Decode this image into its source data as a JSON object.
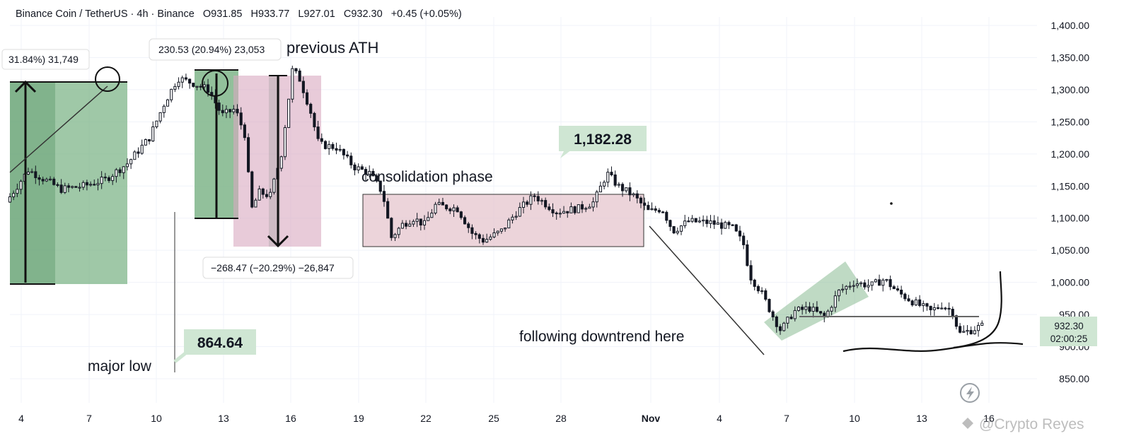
{
  "header": {
    "symbol": "Binance Coin / TetherUS · 4h · Binance",
    "open": "O931.85",
    "high": "H933.77",
    "low": "L927.01",
    "close": "C932.30",
    "change": "+0.45 (+0.05%)"
  },
  "price_tag": {
    "price": "932.30",
    "countdown": "02:00:25"
  },
  "watermark": "@Crypto Reyes",
  "annotations": {
    "previous_ath": "previous ATH",
    "consolidation": "consolidation phase",
    "downtrend": "following downtrend here",
    "major_low": "major low",
    "high_label": "1,182.28",
    "low_label": "864.64",
    "measure_left": "31.84%) 31,749",
    "measure_up": "230.53 (20.94%) 23,053",
    "measure_down": "−268.47 (−20.29%) −26,847"
  },
  "colors": {
    "up": "#26a69a",
    "down": "#131722",
    "green_box": "#7fb589",
    "pink_box": "#d9a9bf",
    "label_green": "#cfe6d3",
    "price_tag": "#cfe6d3"
  },
  "chart_data": {
    "type": "candlestick",
    "interval": "4h",
    "ylim": [
      830,
      1420
    ],
    "y_ticks": [
      850,
      900,
      950,
      1000,
      1050,
      1100,
      1150,
      1200,
      1250,
      1300,
      1350,
      1400
    ],
    "y_tick_labels": [
      "850.00",
      "900.00",
      "950.00",
      "1,000.00",
      "1,050.00",
      "1,100.00",
      "1,150.00",
      "1,200.00",
      "1,250.00",
      "1,300.00",
      "1,350.00",
      "1,400.00"
    ],
    "x_labels": [
      "4",
      "7",
      "10",
      "13",
      "16",
      "19",
      "22",
      "25",
      "28",
      "Nov",
      "4",
      "7",
      "10",
      "13",
      "16"
    ],
    "price_path": [
      {
        "x": 0,
        "y": 1125
      },
      {
        "x": 1,
        "y": 1175
      },
      {
        "x": 2,
        "y": 1155
      },
      {
        "x": 2.5,
        "y": 1145
      },
      {
        "x": 3.5,
        "y": 1150
      },
      {
        "x": 4.5,
        "y": 1160
      },
      {
        "x": 5.5,
        "y": 1185
      },
      {
        "x": 6.5,
        "y": 1225
      },
      {
        "x": 7.2,
        "y": 1280
      },
      {
        "x": 7.8,
        "y": 1318
      },
      {
        "x": 8.5,
        "y": 1310
      },
      {
        "x": 9.2,
        "y": 1300
      },
      {
        "x": 9.8,
        "y": 1260
      },
      {
        "x": 10.4,
        "y": 1270
      },
      {
        "x": 10.9,
        "y": 1225
      },
      {
        "x": 11.1,
        "y": 1110
      },
      {
        "x": 11.5,
        "y": 1140
      },
      {
        "x": 12,
        "y": 1135
      },
      {
        "x": 12.5,
        "y": 1200
      },
      {
        "x": 13,
        "y": 1330
      },
      {
        "x": 13.3,
        "y": 1320
      },
      {
        "x": 13.8,
        "y": 1270
      },
      {
        "x": 14.2,
        "y": 1215
      },
      {
        "x": 15,
        "y": 1210
      },
      {
        "x": 15.8,
        "y": 1180
      },
      {
        "x": 16.5,
        "y": 1170
      },
      {
        "x": 17.1,
        "y": 1140
      },
      {
        "x": 17.5,
        "y": 1070
      },
      {
        "x": 18,
        "y": 1090
      },
      {
        "x": 18.5,
        "y": 1100
      },
      {
        "x": 19,
        "y": 1090
      },
      {
        "x": 19.5,
        "y": 1120
      },
      {
        "x": 20.5,
        "y": 1115
      },
      {
        "x": 21.2,
        "y": 1075
      },
      {
        "x": 21.7,
        "y": 1065
      },
      {
        "x": 22.5,
        "y": 1080
      },
      {
        "x": 23.2,
        "y": 1110
      },
      {
        "x": 24,
        "y": 1135
      },
      {
        "x": 25,
        "y": 1110
      },
      {
        "x": 26,
        "y": 1115
      },
      {
        "x": 26.7,
        "y": 1125
      },
      {
        "x": 27.3,
        "y": 1170
      },
      {
        "x": 27.8,
        "y": 1150
      },
      {
        "x": 28.5,
        "y": 1135
      },
      {
        "x": 29.2,
        "y": 1110
      },
      {
        "x": 29.8,
        "y": 1115
      },
      {
        "x": 30.3,
        "y": 1080
      },
      {
        "x": 31,
        "y": 1095
      },
      {
        "x": 32,
        "y": 1093
      },
      {
        "x": 33,
        "y": 1085
      },
      {
        "x": 33.5,
        "y": 1060
      },
      {
        "x": 33.8,
        "y": 1010
      },
      {
        "x": 34.3,
        "y": 985
      },
      {
        "x": 34.8,
        "y": 950
      },
      {
        "x": 35.2,
        "y": 925
      },
      {
        "x": 35.8,
        "y": 955
      },
      {
        "x": 36.5,
        "y": 960
      },
      {
        "x": 37.2,
        "y": 945
      },
      {
        "x": 37.8,
        "y": 985
      },
      {
        "x": 38.5,
        "y": 1000
      },
      {
        "x": 39.3,
        "y": 995
      },
      {
        "x": 39.9,
        "y": 1005
      },
      {
        "x": 40.5,
        "y": 985
      },
      {
        "x": 41.2,
        "y": 970
      },
      {
        "x": 42,
        "y": 955
      },
      {
        "x": 42.5,
        "y": 965
      },
      {
        "x": 43,
        "y": 955
      },
      {
        "x": 43.3,
        "y": 920
      },
      {
        "x": 43.8,
        "y": 925
      },
      {
        "x": 44.3,
        "y": 932
      }
    ]
  }
}
